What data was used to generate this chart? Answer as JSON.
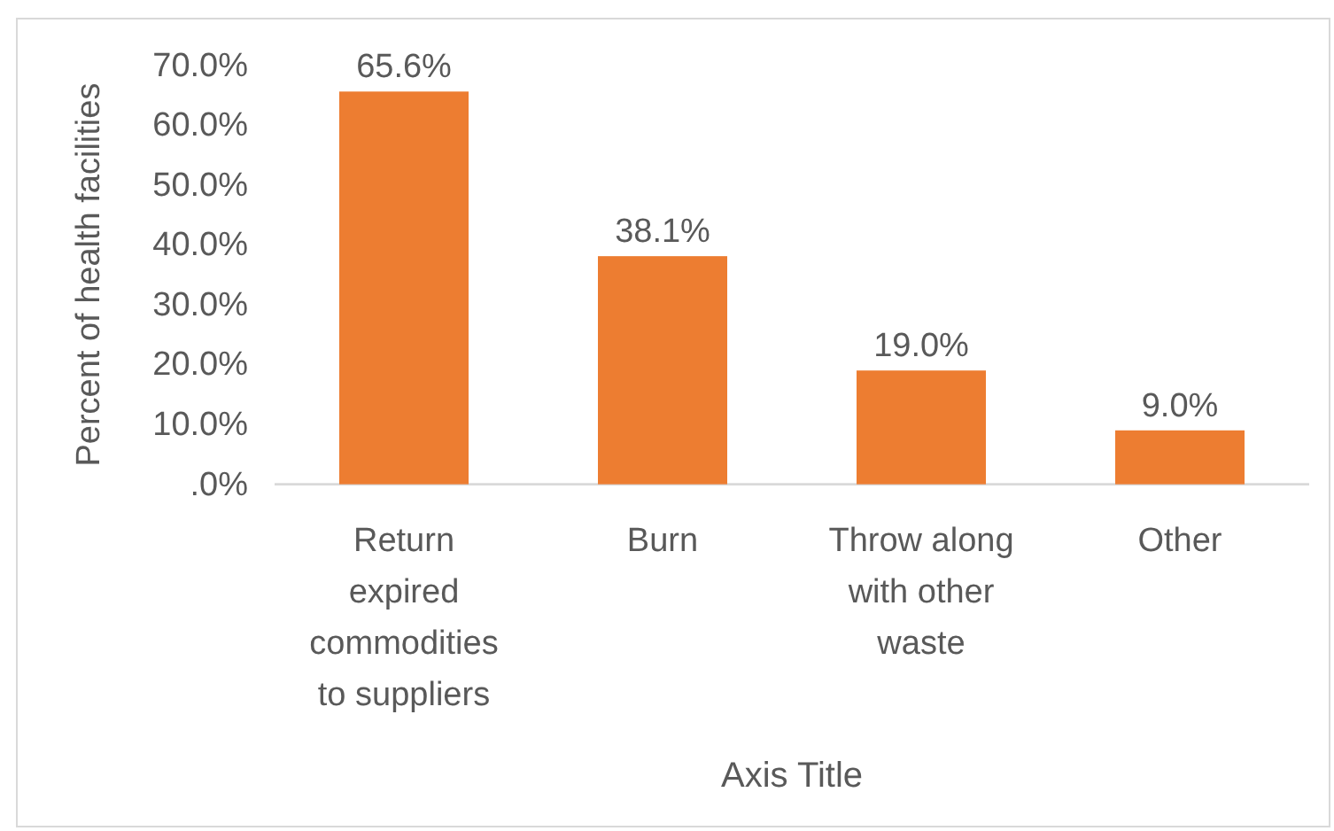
{
  "chart_data": {
    "type": "bar",
    "categories": [
      "Return expired commodities to suppliers",
      "Burn",
      "Throw along with other waste",
      "Other"
    ],
    "values": [
      65.6,
      38.1,
      19.0,
      9.0
    ],
    "value_labels": [
      "65.6%",
      "38.1%",
      "19.0%",
      "9.0%"
    ],
    "color": "#ed7d31",
    "xlabel": "Axis Title",
    "ylabel": "Percent of health facilities",
    "ylim": [
      0,
      70
    ],
    "yticks": [
      {
        "value": 0,
        "label": ".0%"
      },
      {
        "value": 10,
        "label": "10.0%"
      },
      {
        "value": 20,
        "label": "20.0%"
      },
      {
        "value": 30,
        "label": "30.0%"
      },
      {
        "value": 40,
        "label": "40.0%"
      },
      {
        "value": 50,
        "label": "50.0%"
      },
      {
        "value": 60,
        "label": "60.0%"
      },
      {
        "value": 70,
        "label": "70.0%"
      }
    ]
  }
}
